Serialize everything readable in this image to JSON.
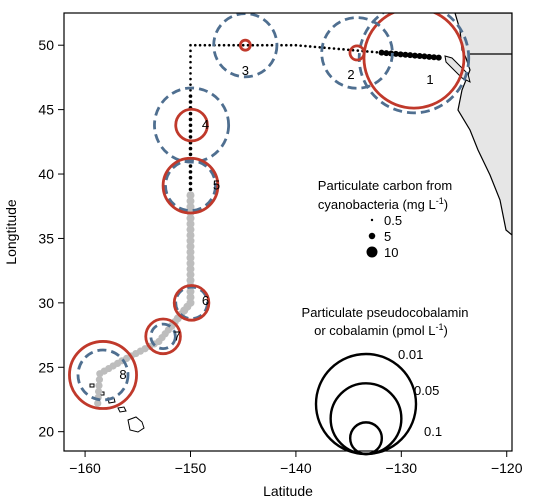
{
  "chart_data": {
    "type": "scatter",
    "xlabel": "Latitude",
    "ylabel": "Longtitude",
    "xlim": [
      -162,
      -119.5
    ],
    "ylim": [
      18.5,
      52.5
    ],
    "xticks": [
      -160,
      -150,
      -140,
      -130,
      -120
    ],
    "yticks": [
      20,
      25,
      30,
      35,
      40,
      45,
      50
    ],
    "x_tick_labels": [
      "−160",
      "−150",
      "−140",
      "−130",
      "−120"
    ],
    "y_tick_labels": [
      "20",
      "25",
      "30",
      "35",
      "40",
      "45",
      "50"
    ],
    "colors": {
      "cobalamin": "#c0392b",
      "pseudocobalamin": "#4f6f90",
      "track": "#bdbdbd",
      "land": "#e6e6e6"
    },
    "stations": [
      {
        "label": "1",
        "x": -128.8,
        "y": 49.0,
        "cobalamin": 0.1,
        "pseudocobalamin": 0.12
      },
      {
        "label": "2",
        "x": -134.2,
        "y": 49.4,
        "cobalamin": 0.002,
        "pseudocobalamin": 0.05
      },
      {
        "label": "3",
        "x": -144.8,
        "y": 50.0,
        "cobalamin": 0.001,
        "pseudocobalamin": 0.04
      },
      {
        "label": "4",
        "x": -149.9,
        "y": 43.8,
        "cobalamin": 0.01,
        "pseudocobalamin": 0.055
      },
      {
        "label": "5",
        "x": -150.0,
        "y": 39.1,
        "cobalamin": 0.03,
        "pseudocobalamin": 0.025
      },
      {
        "label": "6",
        "x": -149.9,
        "y": 30.0,
        "cobalamin": 0.012,
        "pseudocobalamin": 0.01
      },
      {
        "label": "7",
        "x": -152.6,
        "y": 27.4,
        "cobalamin": 0.012,
        "pseudocobalamin": 0.006
      },
      {
        "label": "8",
        "x": -158.3,
        "y": 24.4,
        "cobalamin": 0.045,
        "pseudocobalamin": 0.025
      }
    ],
    "legend_carbon": {
      "title_line1": "Particulate carbon from",
      "title_line2": "cyanobacteria (mg L",
      "title_sup": "-1",
      "title_end": ")",
      "items": [
        {
          "label": "0.5",
          "value": 0.5
        },
        {
          "label": "5",
          "value": 5
        },
        {
          "label": "10",
          "value": 10
        }
      ]
    },
    "legend_cobalamin": {
      "title_line1": "Particulate pseudocobalamin",
      "title_line2": "or cobalamin (pmol L",
      "title_sup": "-1",
      "title_end": ")",
      "items": [
        {
          "label": "0.01",
          "value": 0.01
        },
        {
          "label": "0.05",
          "value": 0.05
        },
        {
          "label": "0.1",
          "value": 0.1
        }
      ]
    }
  }
}
